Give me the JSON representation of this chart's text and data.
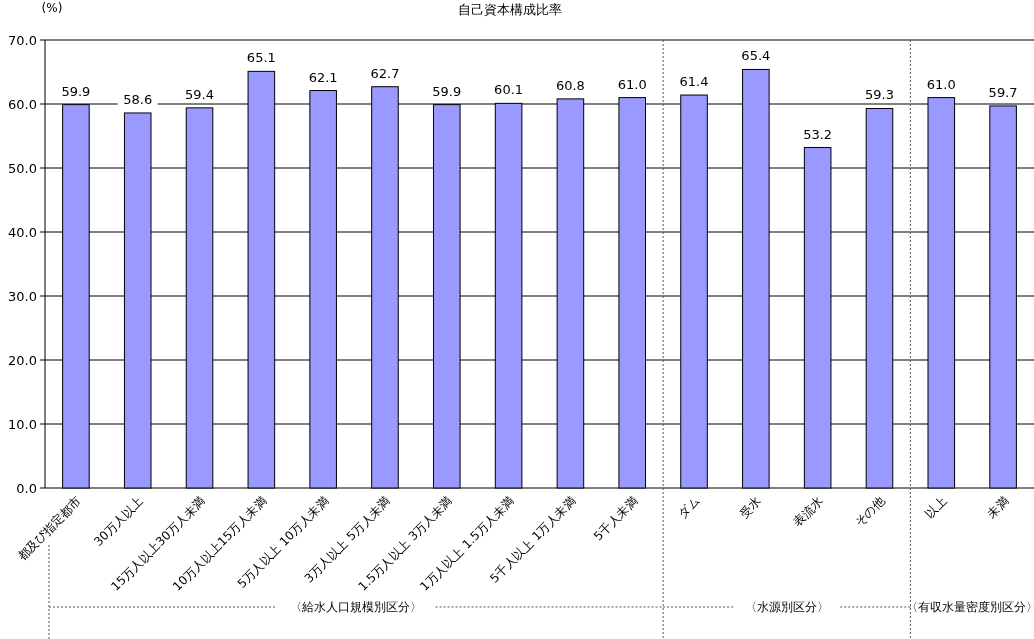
{
  "chart_data": {
    "type": "bar",
    "title": "自己資本構成比率",
    "ylabel": "(%)",
    "categories": [
      "都及び指定都市",
      "30万人以上",
      "15万人以上30万人未満",
      "10万人以上15万人未満",
      "5万人以上 10万人未満",
      "3万人以上 5万人未満",
      "1.5万人以上 3万人未満",
      "1万人以上 1.5万人未満",
      "5千人以上 1万人未満",
      "5千人未満",
      "ダム",
      "受水",
      "表流水",
      "その他",
      "以上",
      "未満"
    ],
    "values": [
      59.9,
      58.6,
      59.4,
      65.1,
      62.1,
      62.7,
      59.9,
      60.1,
      60.8,
      61.0,
      61.4,
      65.4,
      53.2,
      59.3,
      61.0,
      59.7
    ],
    "color": "#9999ff",
    "value_labels": [
      "59.9",
      "58.6",
      "59.4",
      "65.1",
      "62.1",
      "62.7",
      "59.9",
      "60.1",
      "60.8",
      "61.0",
      "61.4",
      "65.4",
      "53.2",
      "59.3",
      "61.0",
      "59.7"
    ],
    "ylim": [
      0,
      70
    ],
    "yticks": [
      {
        "value": 0,
        "label": "0.0"
      },
      {
        "value": 10,
        "label": "10.0"
      },
      {
        "value": 20,
        "label": "20.0"
      },
      {
        "value": 30,
        "label": "30.0"
      },
      {
        "value": 40,
        "label": "40.0"
      },
      {
        "value": 50,
        "label": "50.0"
      },
      {
        "value": 60,
        "label": "60.0"
      },
      {
        "value": 70,
        "label": "70.0"
      }
    ],
    "grid": "y",
    "annotations": [
      "〈給水人口規模別区分〉",
      "〈水源別区分〉",
      "〈有収水量密度別区分〉"
    ]
  }
}
